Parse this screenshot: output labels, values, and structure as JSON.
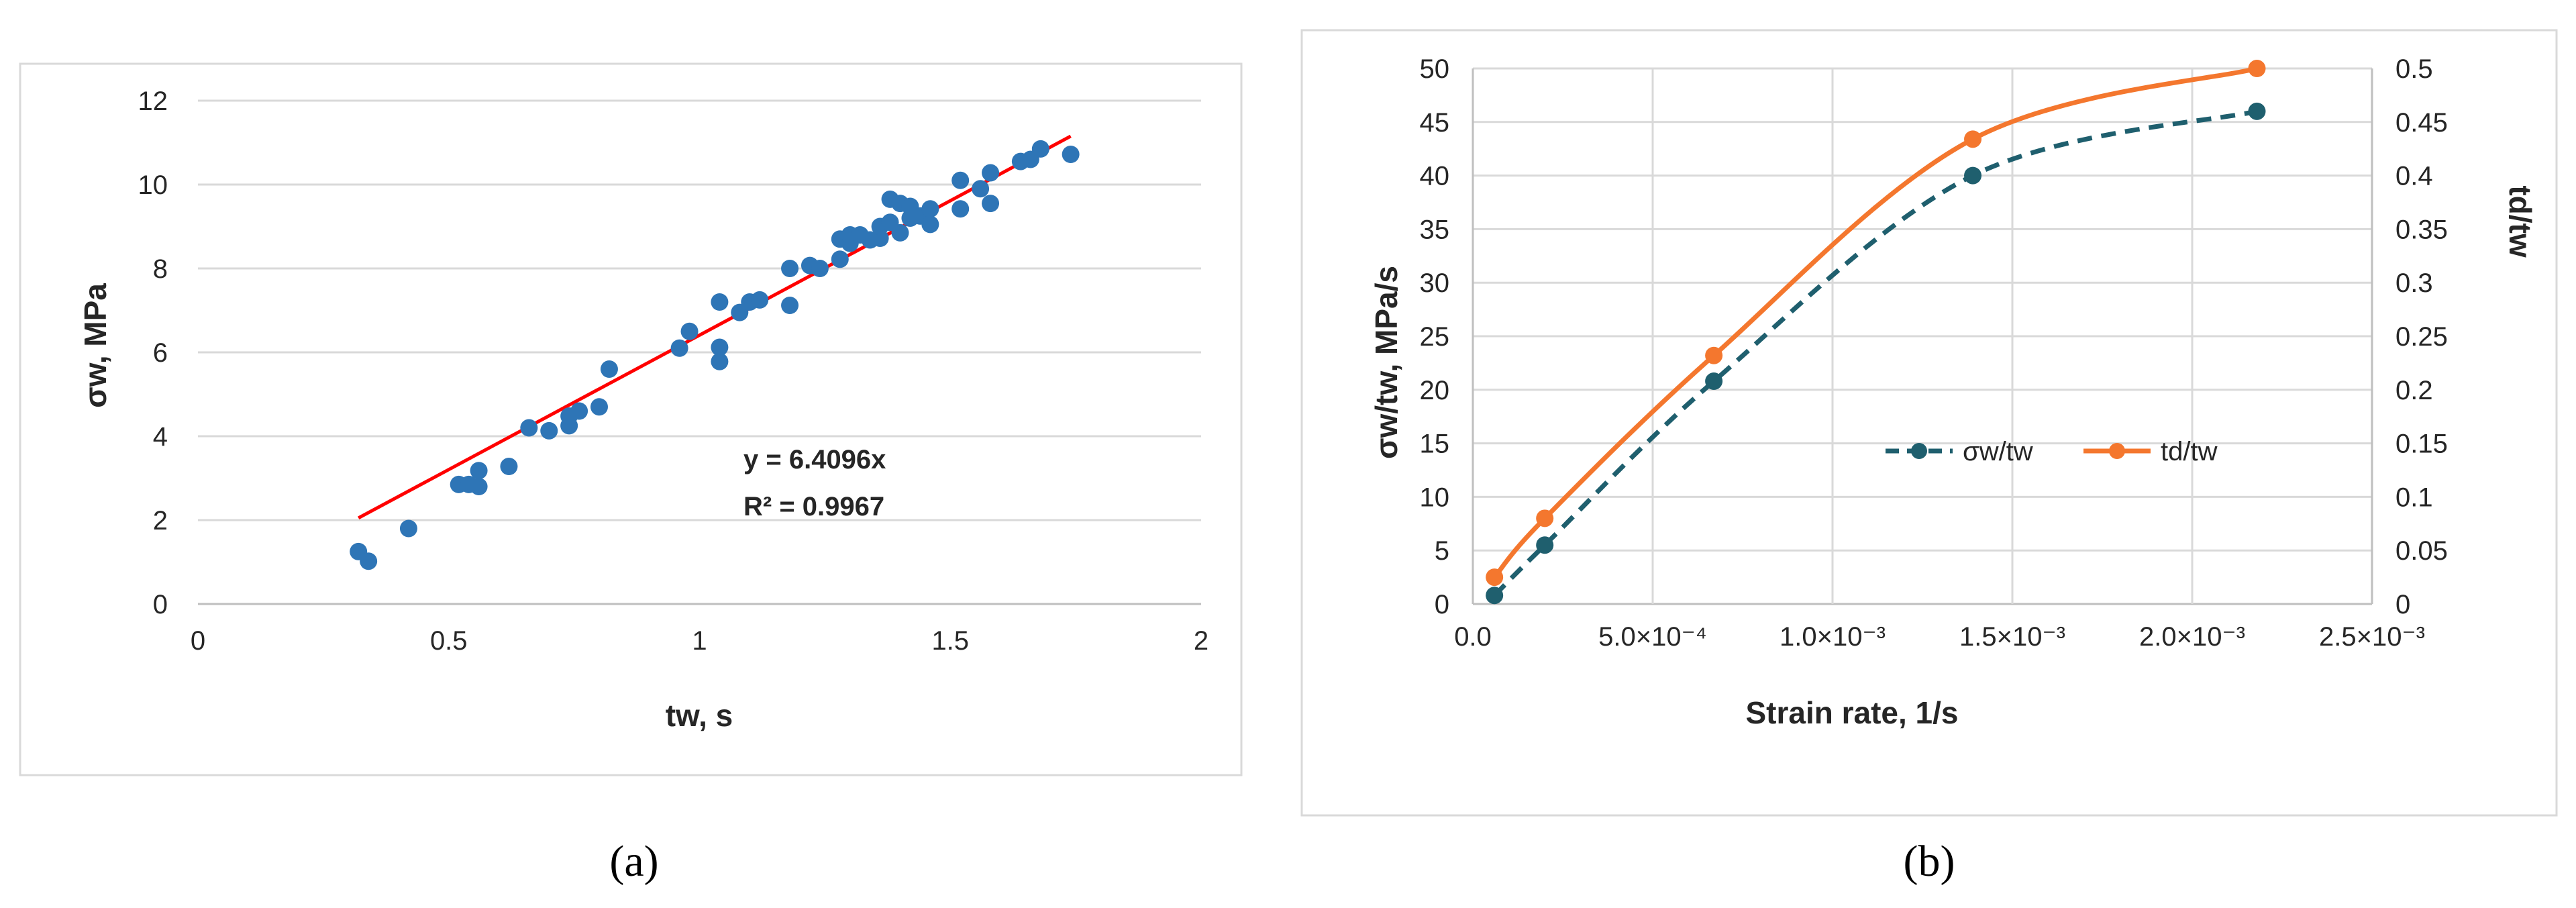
{
  "chart_data": [
    {
      "type": "scatter",
      "panel_label": "(a)",
      "xlabel": "tw, s",
      "ylabel": "σw, MPa",
      "xlim": [
        0,
        2
      ],
      "ylim": [
        0,
        12
      ],
      "xticks": [
        "0",
        "0.5",
        "1",
        "1.5",
        "2"
      ],
      "yticks": [
        "0",
        "2",
        "4",
        "6",
        "8",
        "10",
        "12"
      ],
      "grid": "horizontal",
      "colors": {
        "points": "#2e75b6",
        "trendline": "#ff0000"
      },
      "series": [
        {
          "points": [
            [
              0.32,
              1.25
            ],
            [
              0.34,
              1.02
            ],
            [
              0.42,
              1.8
            ],
            [
              0.52,
              2.85
            ],
            [
              0.54,
              2.85
            ],
            [
              0.56,
              2.8
            ],
            [
              0.56,
              3.18
            ],
            [
              0.62,
              3.28
            ],
            [
              0.66,
              4.2
            ],
            [
              0.7,
              4.13
            ],
            [
              0.74,
              4.25
            ],
            [
              0.74,
              4.48
            ],
            [
              0.76,
              4.6
            ],
            [
              0.8,
              4.7
            ],
            [
              0.82,
              5.6
            ],
            [
              0.96,
              6.1
            ],
            [
              0.98,
              6.5
            ],
            [
              1.04,
              5.78
            ],
            [
              1.04,
              6.12
            ],
            [
              1.04,
              7.2
            ],
            [
              1.08,
              6.95
            ],
            [
              1.1,
              7.2
            ],
            [
              1.12,
              7.25
            ],
            [
              1.18,
              7.12
            ],
            [
              1.18,
              8.0
            ],
            [
              1.22,
              8.07
            ],
            [
              1.24,
              8.0
            ],
            [
              1.28,
              8.22
            ],
            [
              1.28,
              8.7
            ],
            [
              1.3,
              8.6
            ],
            [
              1.3,
              8.8
            ],
            [
              1.32,
              8.8
            ],
            [
              1.34,
              8.68
            ],
            [
              1.36,
              8.72
            ],
            [
              1.36,
              9.0
            ],
            [
              1.38,
              9.1
            ],
            [
              1.38,
              9.65
            ],
            [
              1.4,
              8.85
            ],
            [
              1.4,
              9.55
            ],
            [
              1.42,
              9.2
            ],
            [
              1.42,
              9.48
            ],
            [
              1.44,
              9.25
            ],
            [
              1.46,
              9.05
            ],
            [
              1.46,
              9.42
            ],
            [
              1.52,
              9.42
            ],
            [
              1.52,
              10.1
            ],
            [
              1.56,
              9.9
            ],
            [
              1.58,
              9.55
            ],
            [
              1.58,
              10.28
            ],
            [
              1.64,
              10.55
            ],
            [
              1.66,
              10.6
            ],
            [
              1.68,
              10.85
            ],
            [
              1.74,
              10.72
            ]
          ]
        }
      ],
      "trendline": {
        "slope": 6.4096,
        "x_range": [
          0.32,
          1.74
        ]
      },
      "annotations": [
        "y = 6.4096x",
        "R² = 0.9967"
      ]
    },
    {
      "type": "line",
      "panel_label": "(b)",
      "xlabel": "Strain rate, 1/s",
      "ylabel_left": "σw/tw, MPa/s",
      "ylabel_right": "td/tw",
      "xlim": [
        0,
        0.0025
      ],
      "ylim_left": [
        0,
        50
      ],
      "ylim_right": [
        0,
        0.5
      ],
      "xticks": [
        "0.0",
        "5.0×10⁻⁴",
        "1.0×10⁻³",
        "1.5×10⁻³",
        "2.0×10⁻³",
        "2.5×10⁻³"
      ],
      "yticks_left": [
        "0",
        "5",
        "10",
        "15",
        "20",
        "25",
        "30",
        "35",
        "40",
        "45",
        "50"
      ],
      "yticks_right": [
        "0",
        "0.05",
        "0.1",
        "0.15",
        "0.2",
        "0.25",
        "0.3",
        "0.35",
        "0.4",
        "0.45",
        "0.5"
      ],
      "grid": "both",
      "legend_position": "center-right",
      "series": [
        {
          "name": "σw/tw",
          "axis": "left",
          "style": "dashed",
          "color": "#1f5f6e",
          "x": [
            6e-05,
            0.0002,
            0.00067,
            0.00139,
            0.00218
          ],
          "y": [
            0.8,
            5.5,
            20.8,
            40.0,
            46.0
          ]
        },
        {
          "name": "td/tw",
          "axis": "right",
          "style": "solid",
          "color": "#f4772e",
          "x": [
            6e-05,
            0.0002,
            0.00067,
            0.00139,
            0.00218
          ],
          "y": [
            0.025,
            0.08,
            0.232,
            0.434,
            0.5
          ]
        }
      ]
    }
  ]
}
